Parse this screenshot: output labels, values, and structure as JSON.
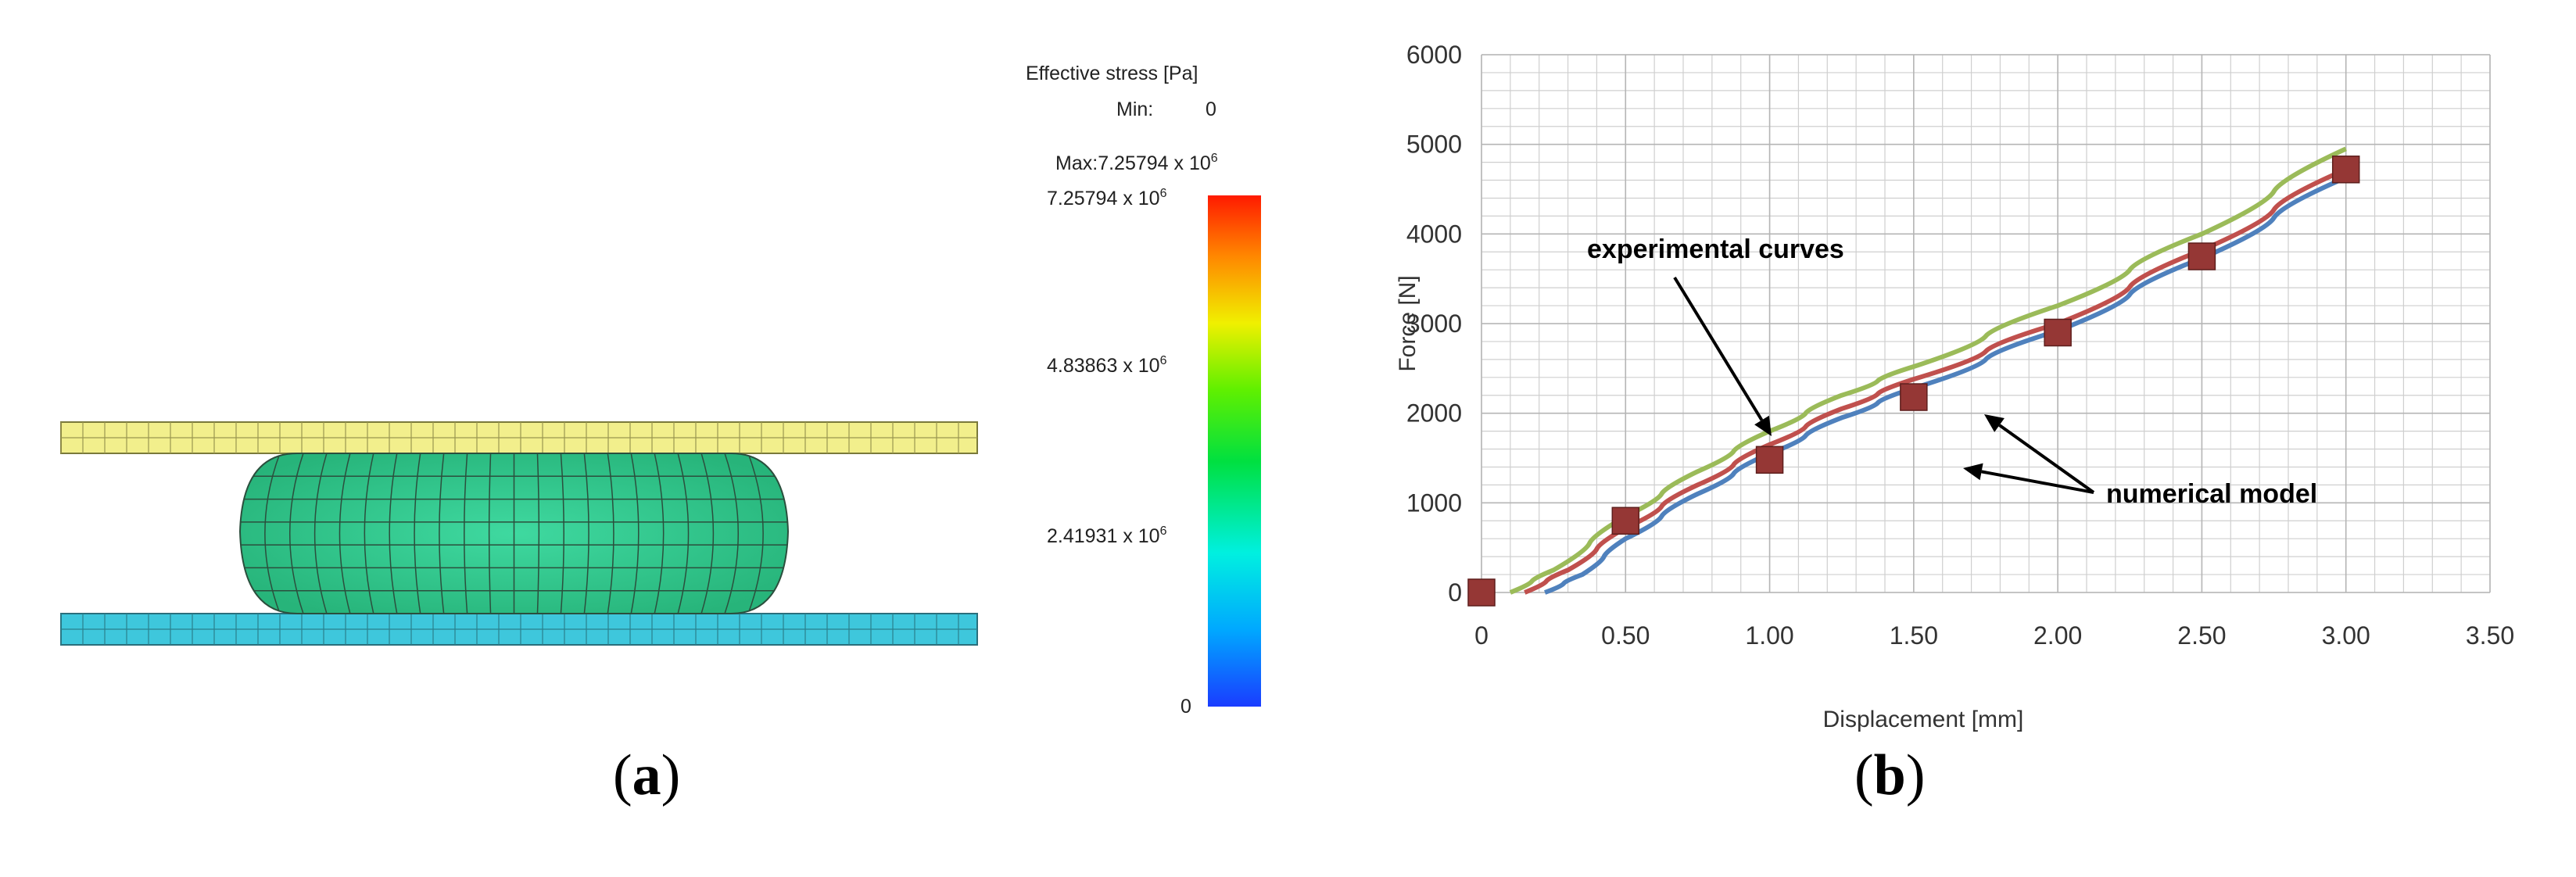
{
  "figure": {
    "panel_a": {
      "caption_open": "(",
      "caption_letter": "a",
      "caption_close": ")",
      "legend": {
        "title": "Effective stress [Pa]",
        "min_label": "Min:",
        "min_value": "0",
        "max_prefix": "Max:",
        "max_value": "7.25794 x 10",
        "max_exp": "6",
        "ticks": [
          {
            "mantissa": "7.25794 x 10",
            "exp": "6",
            "value": 7257940
          },
          {
            "mantissa": "4.83863 x 10",
            "exp": "6",
            "value": 4838630
          },
          {
            "mantissa": "2.41931 x 10",
            "exp": "6",
            "value": 2419310
          },
          {
            "mantissa": "0",
            "exp": "",
            "value": 0
          }
        ]
      },
      "colors": {
        "plate_top": "#f2ef8c",
        "plate_bottom": "#3ec7dc",
        "body_fill": "#33cc8f",
        "mesh_line": "#2b4f3d"
      }
    },
    "panel_b": {
      "caption_open": "(",
      "caption_letter": "b",
      "caption_close": ")",
      "annotation_experimental": "experimental curves",
      "annotation_numerical": "numerical model"
    }
  },
  "chart_data": {
    "type": "line",
    "title": "",
    "xlabel": "Displacement [mm]",
    "ylabel": "Force [N]",
    "xlim": [
      0,
      3.5
    ],
    "ylim": [
      0,
      6000
    ],
    "xticks": [
      0,
      0.5,
      1.0,
      1.5,
      2.0,
      2.5,
      3.0,
      3.5
    ],
    "xtick_labels": [
      "0",
      "0.50",
      "1.00",
      "1.50",
      "2.00",
      "2.50",
      "3.00",
      "3.50"
    ],
    "yticks": [
      0,
      1000,
      2000,
      3000,
      4000,
      5000,
      6000
    ],
    "ytick_labels": [
      "0",
      "1000",
      "2000",
      "3000",
      "4000",
      "5000",
      "6000"
    ],
    "grid": true,
    "series": [
      {
        "name": "experimental curve (green)",
        "color": "#9bbb59",
        "marker": "none",
        "x": [
          0.1,
          0.25,
          0.5,
          0.75,
          1.0,
          1.25,
          1.5,
          2.0,
          2.5,
          3.0
        ],
        "y": [
          0,
          250,
          850,
          1350,
          1800,
          2200,
          2520,
          3200,
          4000,
          4950
        ]
      },
      {
        "name": "experimental curve (red)",
        "color": "#c0504d",
        "marker": "none",
        "x": [
          0.15,
          0.3,
          0.5,
          0.75,
          1.0,
          1.25,
          1.5,
          2.0,
          2.5,
          3.0
        ],
        "y": [
          0,
          250,
          720,
          1200,
          1650,
          2050,
          2380,
          3000,
          3820,
          4720
        ]
      },
      {
        "name": "experimental curve (blue)",
        "color": "#4f81bd",
        "marker": "none",
        "x": [
          0.22,
          0.35,
          0.5,
          0.75,
          1.0,
          1.25,
          1.5,
          2.0,
          2.5,
          3.0
        ],
        "y": [
          0,
          200,
          600,
          1100,
          1550,
          1950,
          2280,
          2920,
          3730,
          4630
        ]
      },
      {
        "name": "numerical model",
        "color": "#953735",
        "marker": "square",
        "line": false,
        "x": [
          0,
          0.5,
          1.0,
          1.5,
          2.0,
          2.5,
          3.0
        ],
        "y": [
          0,
          800,
          1480,
          2180,
          2900,
          3750,
          4720
        ]
      }
    ]
  }
}
